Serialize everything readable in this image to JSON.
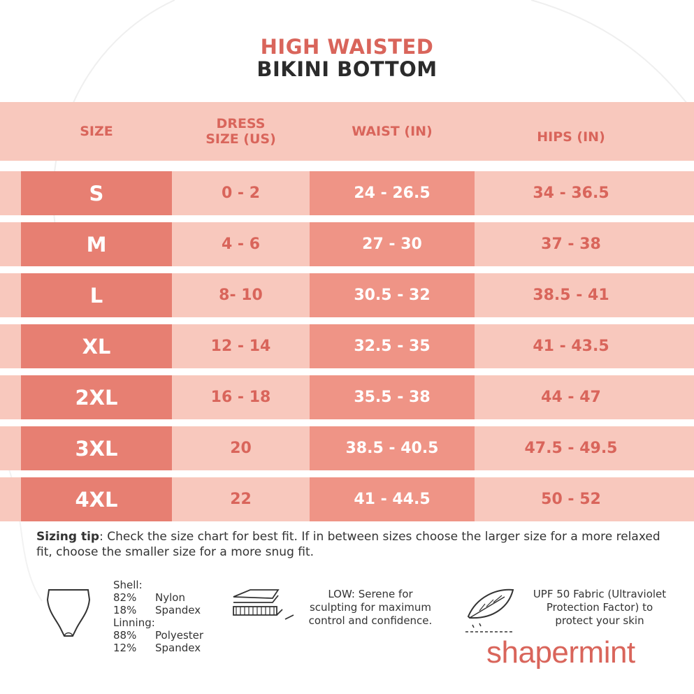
{
  "title": {
    "line1": "HIGH WAISTED",
    "line2": "BIKINI BOTTOM"
  },
  "table": {
    "headers": {
      "size": "SIZE",
      "dress_line1": "DRESS",
      "dress_line2": "SIZE (US)",
      "waist": "WAIST (IN)",
      "hips": "HIPS (IN)"
    },
    "rows": [
      {
        "size": "S",
        "dress": "0 - 2",
        "waist": "24 - 26.5",
        "hips": "34 - 36.5"
      },
      {
        "size": "M",
        "dress": "4 - 6",
        "waist": "27 - 30",
        "hips": "37 - 38"
      },
      {
        "size": "L",
        "dress": "8- 10",
        "waist": "30.5 - 32",
        "hips": "38.5 - 41"
      },
      {
        "size": "XL",
        "dress": "12 - 14",
        "waist": "32.5 - 35",
        "hips": "41 - 43.5"
      },
      {
        "size": "2XL",
        "dress": "16 - 18",
        "waist": "35.5 - 38",
        "hips": "44 - 47"
      },
      {
        "size": "3XL",
        "dress": "20",
        "waist": "38.5 - 40.5",
        "hips": "47.5 - 49.5"
      },
      {
        "size": "4XL",
        "dress": "22",
        "waist": "41 - 44.5",
        "hips": "50 - 52"
      }
    ]
  },
  "tip": {
    "label": "Sizing tip",
    "text": ": Check the size chart for best fit. If in between sizes choose the larger size for a more relaxed fit, choose the smaller size for a more snug fit."
  },
  "material": {
    "shell_label": "Shell:",
    "shell": [
      {
        "pct": "82%",
        "fabric": "Nylon"
      },
      {
        "pct": "18%",
        "fabric": "Spandex"
      }
    ],
    "lining_label": "Linning:",
    "lining": [
      {
        "pct": "88%",
        "fabric": "Polyester"
      },
      {
        "pct": "12%",
        "fabric": "Spandex"
      }
    ]
  },
  "compression": {
    "line1": "LOW: Serene for",
    "line2": "sculpting for maximum",
    "line3": "control and confidence."
  },
  "upf": {
    "line1": "UPF 50 Fabric (Ultraviolet",
    "line2": "Protection Factor) to",
    "line3": "protect your skin"
  },
  "brand": {
    "name": "shapermint"
  },
  "icons": {
    "garment": "briefs-icon",
    "layers": "fabric-layers-icon",
    "feather": "feather-icon"
  },
  "colors": {
    "accent": "#d9655b",
    "band": "#f8c8bd",
    "size_cell": "#e77f72",
    "waist_cell": "#ef9486"
  }
}
